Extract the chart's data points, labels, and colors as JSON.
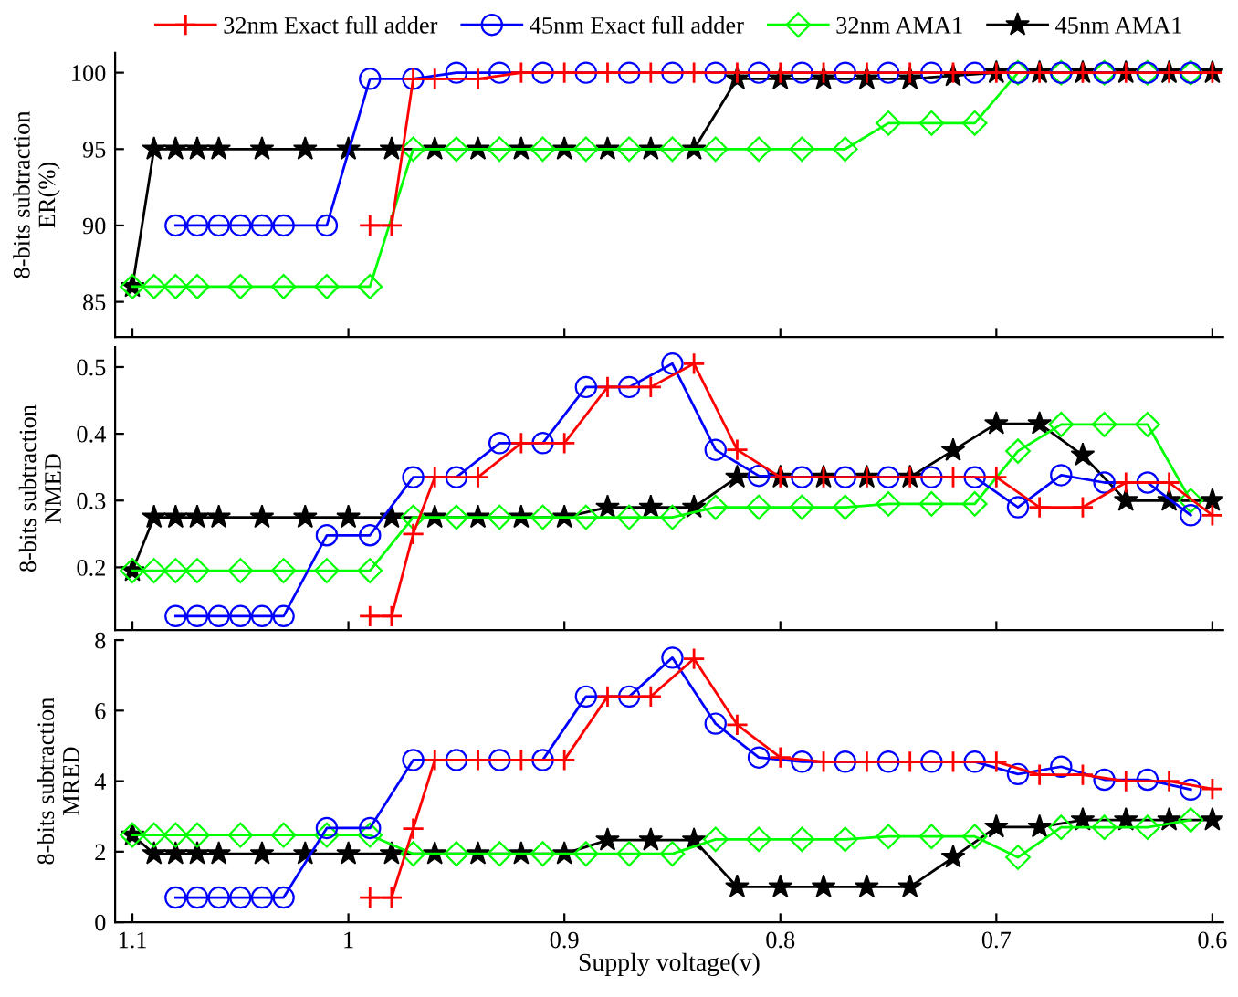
{
  "chart_data": [
    {
      "type": "line",
      "ylabel": "8-bits subtraction\nER(%)",
      "xlim": [
        1.108,
        0.595
      ],
      "xticks": [
        1.1,
        1,
        0.9,
        0.8,
        0.7,
        0.6
      ],
      "ylim": [
        82.7,
        101.3
      ],
      "yticks": [
        85,
        90,
        95,
        100
      ],
      "legend": "top",
      "tick_labels": "y",
      "line_style": "solid",
      "series": [
        {
          "name": "32nm Exact full adder",
          "color": "#ff0000",
          "marker": "cross",
          "x": [
            0.99,
            0.98,
            0.97,
            0.96,
            0.94,
            0.92,
            0.9,
            0.88,
            0.86,
            0.84,
            0.82,
            0.8,
            0.78,
            0.76,
            0.74,
            0.72,
            0.7,
            0.68,
            0.66,
            0.64,
            0.62,
            0.6
          ],
          "values": [
            90,
            90,
            99.6,
            99.6,
            99.6,
            100,
            100,
            100,
            100,
            100,
            100,
            100,
            100,
            100,
            100,
            100,
            100,
            100,
            100,
            100,
            100,
            100
          ]
        },
        {
          "name": "45nm Exact full adder",
          "color": "#0000ff",
          "marker": "circle",
          "x": [
            1.08,
            1.07,
            1.06,
            1.05,
            1.04,
            1.03,
            1.01,
            0.99,
            0.97,
            0.95,
            0.93,
            0.91,
            0.89,
            0.87,
            0.85,
            0.83,
            0.81,
            0.79,
            0.77,
            0.75,
            0.73,
            0.71,
            0.69,
            0.67,
            0.65,
            0.63,
            0.61
          ],
          "values": [
            90,
            90,
            90,
            90,
            90,
            90,
            90,
            99.6,
            99.6,
            100,
            100,
            100,
            100,
            100,
            100,
            100,
            100,
            100,
            100,
            100,
            100,
            100,
            100,
            100,
            100,
            100,
            100
          ]
        },
        {
          "name": "32nm AMA1",
          "color": "#00ff00",
          "marker": "diamond",
          "x": [
            1.1,
            1.09,
            1.08,
            1.07,
            1.05,
            1.03,
            1.01,
            0.99,
            0.97,
            0.95,
            0.93,
            0.91,
            0.89,
            0.87,
            0.85,
            0.83,
            0.81,
            0.79,
            0.77,
            0.75,
            0.73,
            0.71,
            0.69,
            0.67,
            0.65,
            0.63,
            0.61
          ],
          "values": [
            86,
            86,
            86,
            86,
            86,
            86,
            86,
            86,
            95,
            95,
            95,
            95,
            95,
            95,
            95,
            95,
            95,
            95,
            95,
            96.7,
            96.7,
            96.7,
            100,
            100,
            100,
            100,
            100
          ]
        },
        {
          "name": "45nm AMA1",
          "color": "#000000",
          "marker": "star",
          "x": [
            1.1,
            1.09,
            1.08,
            1.07,
            1.06,
            1.04,
            1.02,
            1.0,
            0.98,
            0.96,
            0.94,
            0.92,
            0.9,
            0.88,
            0.86,
            0.84,
            0.82,
            0.8,
            0.78,
            0.76,
            0.74,
            0.72,
            0.7,
            0.68,
            0.66,
            0.64,
            0.62,
            0.6
          ],
          "values": [
            86,
            95,
            95,
            95,
            95,
            95,
            95,
            95,
            95,
            95,
            95,
            95,
            95,
            95,
            95,
            95,
            99.6,
            99.6,
            99.6,
            99.6,
            99.6,
            99.8,
            100,
            100,
            100,
            100,
            100,
            100
          ]
        }
      ]
    },
    {
      "type": "line",
      "ylabel": "8-bits subtraction\nNMED",
      "xlim": [
        1.108,
        0.595
      ],
      "xticks": [
        1.1,
        1,
        0.9,
        0.8,
        0.7,
        0.6
      ],
      "ylim": [
        0.106,
        0.53
      ],
      "yticks": [
        0.2,
        0.3,
        0.4,
        0.5
      ],
      "tick_labels": "y",
      "line_style": "solid",
      "series": [
        {
          "color": "#ff0000",
          "marker": "cross",
          "x": [
            0.99,
            0.98,
            0.97,
            0.96,
            0.94,
            0.92,
            0.9,
            0.88,
            0.86,
            0.84,
            0.82,
            0.8,
            0.78,
            0.76,
            0.74,
            0.72,
            0.7,
            0.68,
            0.66,
            0.64,
            0.62,
            0.6
          ],
          "values": [
            0.127,
            0.127,
            0.25,
            0.335,
            0.335,
            0.386,
            0.386,
            0.47,
            0.47,
            0.505,
            0.376,
            0.335,
            0.335,
            0.335,
            0.335,
            0.335,
            0.335,
            0.29,
            0.29,
            0.327,
            0.327,
            0.278
          ]
        },
        {
          "color": "#0000ff",
          "marker": "circle",
          "x": [
            1.08,
            1.07,
            1.06,
            1.05,
            1.04,
            1.03,
            1.01,
            0.99,
            0.97,
            0.95,
            0.93,
            0.91,
            0.89,
            0.87,
            0.85,
            0.83,
            0.81,
            0.79,
            0.77,
            0.75,
            0.73,
            0.71,
            0.69,
            0.67,
            0.65,
            0.63,
            0.61
          ],
          "values": [
            0.127,
            0.127,
            0.127,
            0.127,
            0.127,
            0.127,
            0.248,
            0.248,
            0.335,
            0.335,
            0.386,
            0.386,
            0.47,
            0.47,
            0.505,
            0.376,
            0.337,
            0.335,
            0.335,
            0.335,
            0.335,
            0.335,
            0.29,
            0.338,
            0.327,
            0.327,
            0.278
          ]
        },
        {
          "color": "#00ff00",
          "marker": "diamond",
          "x": [
            1.1,
            1.09,
            1.08,
            1.07,
            1.05,
            1.03,
            1.01,
            0.99,
            0.97,
            0.95,
            0.93,
            0.91,
            0.89,
            0.87,
            0.85,
            0.83,
            0.81,
            0.79,
            0.77,
            0.75,
            0.73,
            0.71,
            0.69,
            0.67,
            0.65,
            0.63,
            0.61
          ],
          "values": [
            0.195,
            0.195,
            0.195,
            0.195,
            0.195,
            0.195,
            0.195,
            0.195,
            0.275,
            0.275,
            0.275,
            0.275,
            0.275,
            0.275,
            0.275,
            0.29,
            0.29,
            0.29,
            0.29,
            0.295,
            0.295,
            0.295,
            0.374,
            0.414,
            0.414,
            0.414,
            0.3
          ]
        },
        {
          "color": "#000000",
          "marker": "star",
          "x": [
            1.1,
            1.09,
            1.08,
            1.07,
            1.06,
            1.04,
            1.02,
            1.0,
            0.98,
            0.96,
            0.94,
            0.92,
            0.9,
            0.88,
            0.86,
            0.84,
            0.82,
            0.8,
            0.78,
            0.76,
            0.74,
            0.72,
            0.7,
            0.68,
            0.66,
            0.64,
            0.62,
            0.6
          ],
          "values": [
            0.195,
            0.275,
            0.275,
            0.275,
            0.275,
            0.275,
            0.275,
            0.275,
            0.275,
            0.275,
            0.275,
            0.275,
            0.275,
            0.29,
            0.29,
            0.29,
            0.335,
            0.335,
            0.335,
            0.335,
            0.335,
            0.375,
            0.415,
            0.415,
            0.368,
            0.3,
            0.3,
            0.3
          ]
        }
      ]
    },
    {
      "type": "line",
      "ylabel": "8-bits subtraction\nMRED",
      "xlabel": "Supply voltage(v)",
      "xlim": [
        1.108,
        0.595
      ],
      "xticks": [
        1.1,
        1,
        0.9,
        0.8,
        0.7,
        0.6
      ],
      "ylim": [
        0,
        8
      ],
      "yticks": [
        0,
        2,
        4,
        6,
        8
      ],
      "line_style": "solid",
      "series": [
        {
          "color": "#ff0000",
          "marker": "cross",
          "x": [
            0.99,
            0.98,
            0.97,
            0.96,
            0.94,
            0.92,
            0.9,
            0.88,
            0.86,
            0.84,
            0.82,
            0.8,
            0.78,
            0.76,
            0.74,
            0.72,
            0.7,
            0.68,
            0.66,
            0.64,
            0.62,
            0.6
          ],
          "values": [
            0.7,
            0.7,
            2.65,
            4.6,
            4.6,
            4.6,
            4.6,
            6.4,
            6.4,
            7.47,
            5.6,
            4.67,
            4.55,
            4.55,
            4.55,
            4.55,
            4.55,
            4.18,
            4.18,
            4.0,
            4.0,
            3.78
          ]
        },
        {
          "color": "#0000ff",
          "marker": "circle",
          "x": [
            1.08,
            1.07,
            1.06,
            1.05,
            1.04,
            1.03,
            1.01,
            0.99,
            0.97,
            0.95,
            0.93,
            0.91,
            0.89,
            0.87,
            0.85,
            0.83,
            0.81,
            0.79,
            0.77,
            0.75,
            0.73,
            0.71,
            0.69,
            0.67,
            0.65,
            0.63,
            0.61
          ],
          "values": [
            0.7,
            0.7,
            0.7,
            0.7,
            0.7,
            0.7,
            2.67,
            2.67,
            4.6,
            4.6,
            4.6,
            4.6,
            6.4,
            6.4,
            7.5,
            5.63,
            4.67,
            4.55,
            4.55,
            4.55,
            4.55,
            4.55,
            4.2,
            4.41,
            4.04,
            4.04,
            3.76
          ]
        },
        {
          "color": "#00ff00",
          "marker": "diamond",
          "x": [
            1.1,
            1.09,
            1.08,
            1.07,
            1.05,
            1.03,
            1.01,
            0.99,
            0.97,
            0.95,
            0.93,
            0.91,
            0.89,
            0.87,
            0.85,
            0.83,
            0.81,
            0.79,
            0.77,
            0.75,
            0.73,
            0.71,
            0.69,
            0.67,
            0.65,
            0.63,
            0.61
          ],
          "values": [
            2.47,
            2.47,
            2.47,
            2.47,
            2.47,
            2.47,
            2.47,
            2.47,
            1.94,
            1.94,
            1.94,
            1.94,
            1.94,
            1.94,
            1.94,
            2.35,
            2.35,
            2.35,
            2.35,
            2.43,
            2.43,
            2.43,
            1.84,
            2.69,
            2.69,
            2.69,
            2.9
          ]
        },
        {
          "color": "#000000",
          "marker": "star",
          "x": [
            1.1,
            1.09,
            1.08,
            1.07,
            1.06,
            1.04,
            1.02,
            1.0,
            0.98,
            0.96,
            0.94,
            0.92,
            0.9,
            0.88,
            0.86,
            0.84,
            0.82,
            0.8,
            0.78,
            0.76,
            0.74,
            0.72,
            0.7,
            0.68,
            0.66,
            0.64,
            0.62,
            0.6
          ],
          "values": [
            2.47,
            1.94,
            1.94,
            1.94,
            1.94,
            1.94,
            1.94,
            1.94,
            1.94,
            1.94,
            1.94,
            1.94,
            1.94,
            2.33,
            2.33,
            2.33,
            1.0,
            1.0,
            1.0,
            1.0,
            1.0,
            1.84,
            2.7,
            2.7,
            2.9,
            2.9,
            2.9,
            2.9
          ]
        }
      ]
    }
  ]
}
